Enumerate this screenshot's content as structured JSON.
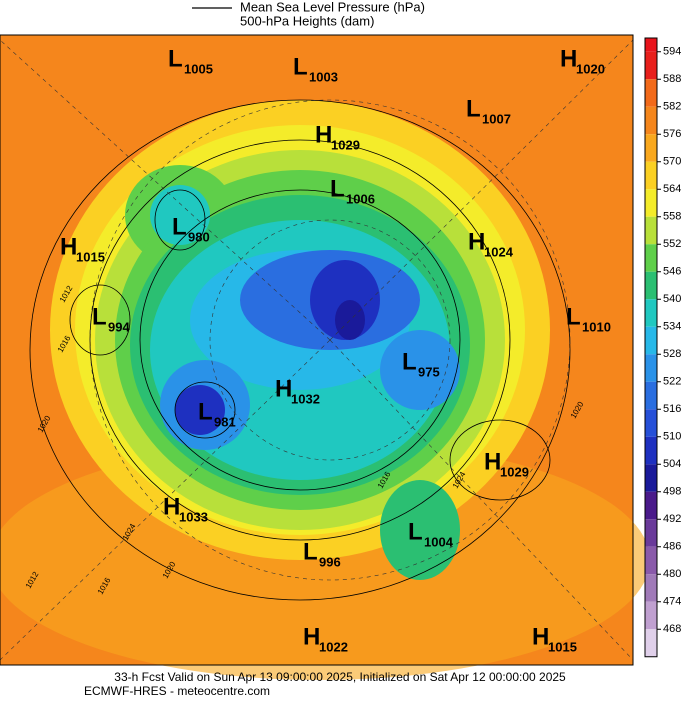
{
  "legend": {
    "line_label": "Mean Sea Level Pressure (hPa)",
    "fill_label": "500-hPa Heights (dam)"
  },
  "colorbar": {
    "ticks": [
      594,
      588,
      582,
      576,
      570,
      564,
      558,
      552,
      546,
      540,
      534,
      528,
      522,
      516,
      510,
      504,
      498,
      492,
      486,
      480,
      474,
      468
    ],
    "colors": [
      "#e8201c",
      "#f26a1a",
      "#f5861c",
      "#f9a81e",
      "#fbd023",
      "#f4ec2a",
      "#b8e03a",
      "#5fcf4a",
      "#2bbf72",
      "#20c8c0",
      "#27b8e8",
      "#2a92e8",
      "#2a6ee0",
      "#2650d8",
      "#1e30c0",
      "#1a1a9a",
      "#4a1a8a",
      "#6a3a9a",
      "#8a5aaa",
      "#a07ab8",
      "#c0a0d0",
      "#e0d0ea"
    ]
  },
  "centers": [
    {
      "type": "L",
      "value": 1005
    },
    {
      "type": "L",
      "value": 1003
    },
    {
      "type": "H",
      "value": 1020
    },
    {
      "type": "L",
      "value": 1007
    },
    {
      "type": "H",
      "value": 1029
    },
    {
      "type": "L",
      "value": 1006
    },
    {
      "type": "L",
      "value": 980
    },
    {
      "type": "H",
      "value": 1015
    },
    {
      "type": "H",
      "value": 1024
    },
    {
      "type": "L",
      "value": 994
    },
    {
      "type": "L",
      "value": 1010
    },
    {
      "type": "L",
      "value": 975
    },
    {
      "type": "H",
      "value": 1032
    },
    {
      "type": "L",
      "value": 981
    },
    {
      "type": "H",
      "value": 1029
    },
    {
      "type": "H",
      "value": 1033
    },
    {
      "type": "L",
      "value": 1004
    },
    {
      "type": "L",
      "value": 996
    },
    {
      "type": "H",
      "value": 1022
    },
    {
      "type": "H",
      "value": 1015
    }
  ],
  "isobar_labels": [
    1012,
    1016,
    1020,
    1024,
    1020,
    1016,
    1012,
    1016,
    1020,
    1024
  ],
  "footer": {
    "line1": "33-h Fcst Valid on Sun Apr 13 09:00:00 2025, Initialized on Sat Apr 12 00:00:00 2025",
    "line2": "ECMWF-HRES  - meteocentre.com"
  }
}
